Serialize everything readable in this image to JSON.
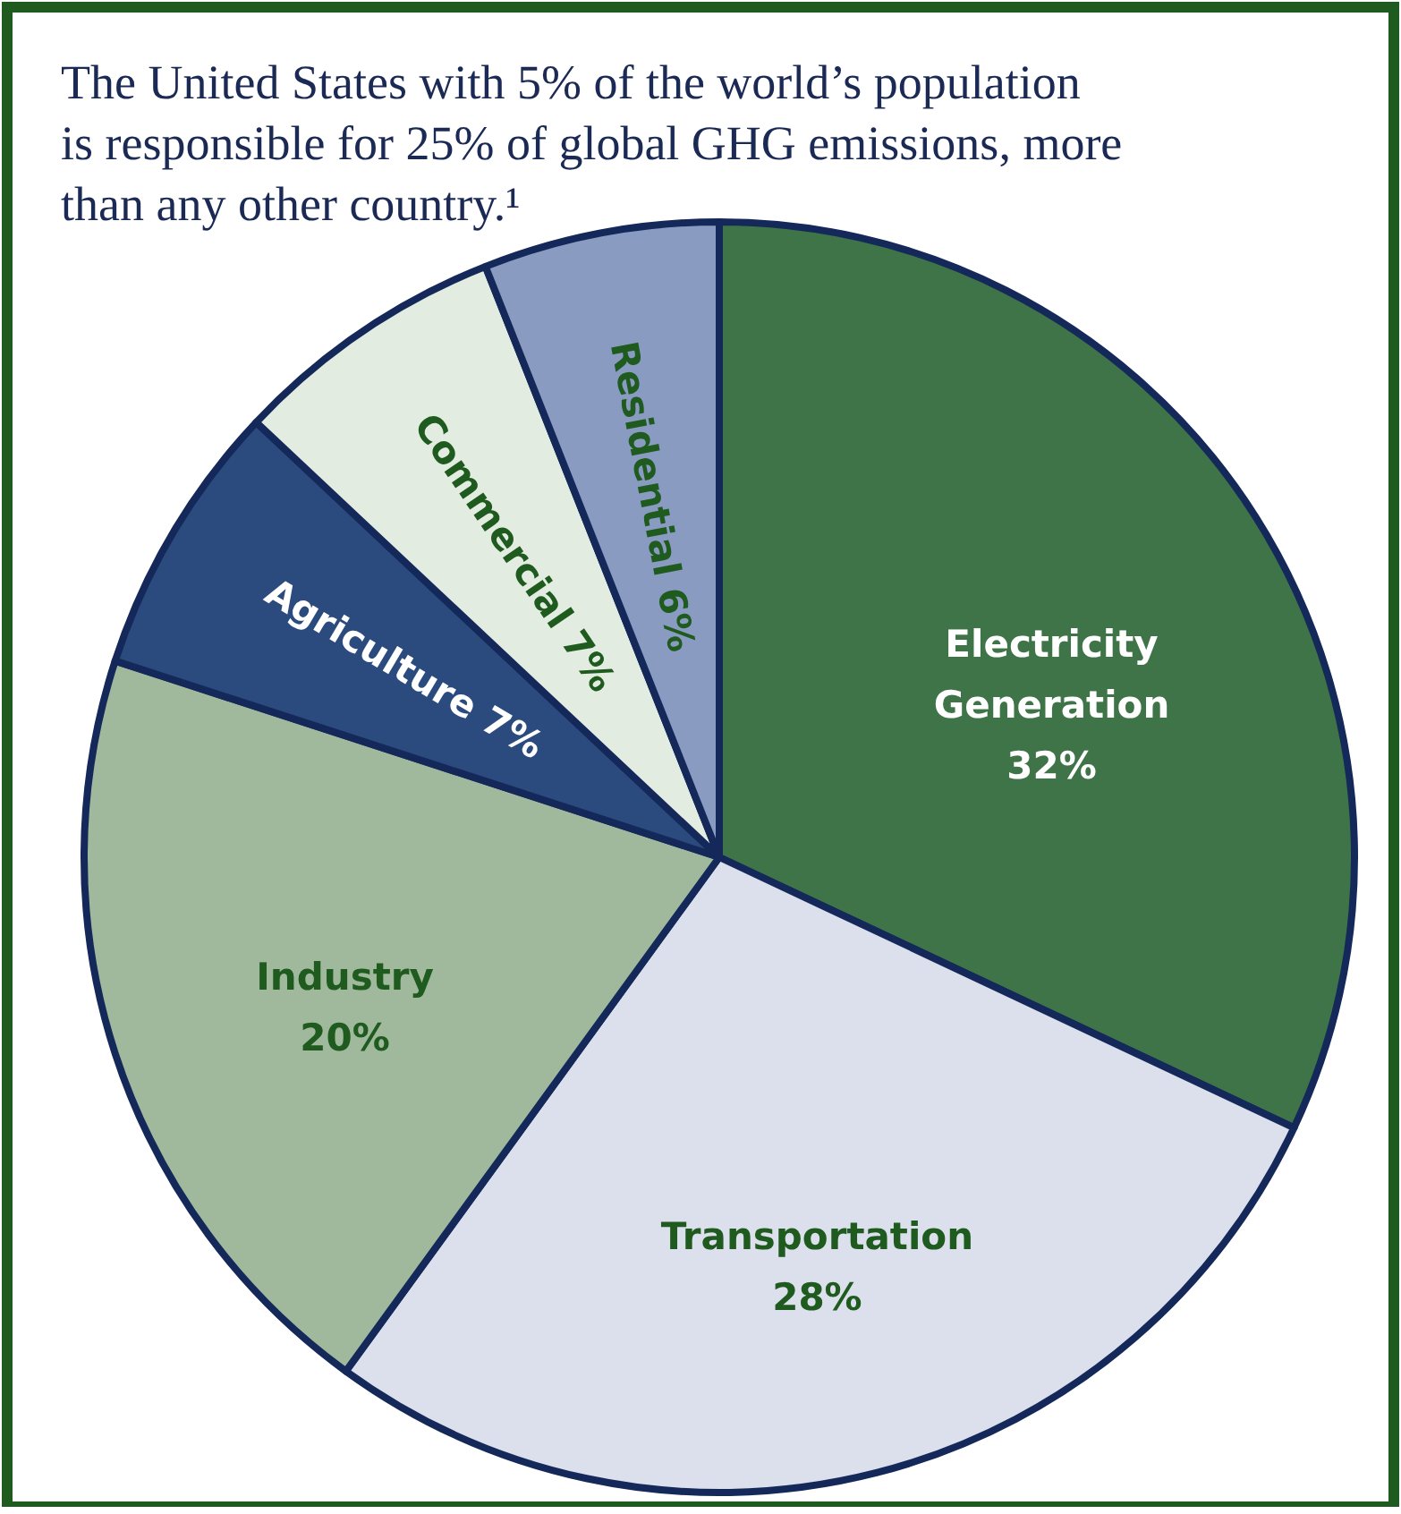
{
  "chart_data": {
    "type": "pie",
    "title": "The United States with 5% of the world’s population is responsible for 25% of global GHG emissions, more than any other country.¹",
    "categories": [
      "Electricity Generation",
      "Transportation",
      "Industry",
      "Agriculture",
      "Commercial",
      "Residential"
    ],
    "values": [
      32,
      28,
      20,
      7,
      7,
      6
    ],
    "value_labels": [
      "32%",
      "28%",
      "20%",
      "7%",
      "7%",
      "6%"
    ],
    "colors": [
      "#3f7448",
      "#dcdfec",
      "#a0b99c",
      "#2b4a7e",
      "#e3ece0",
      "#8a9bc2"
    ]
  }
}
